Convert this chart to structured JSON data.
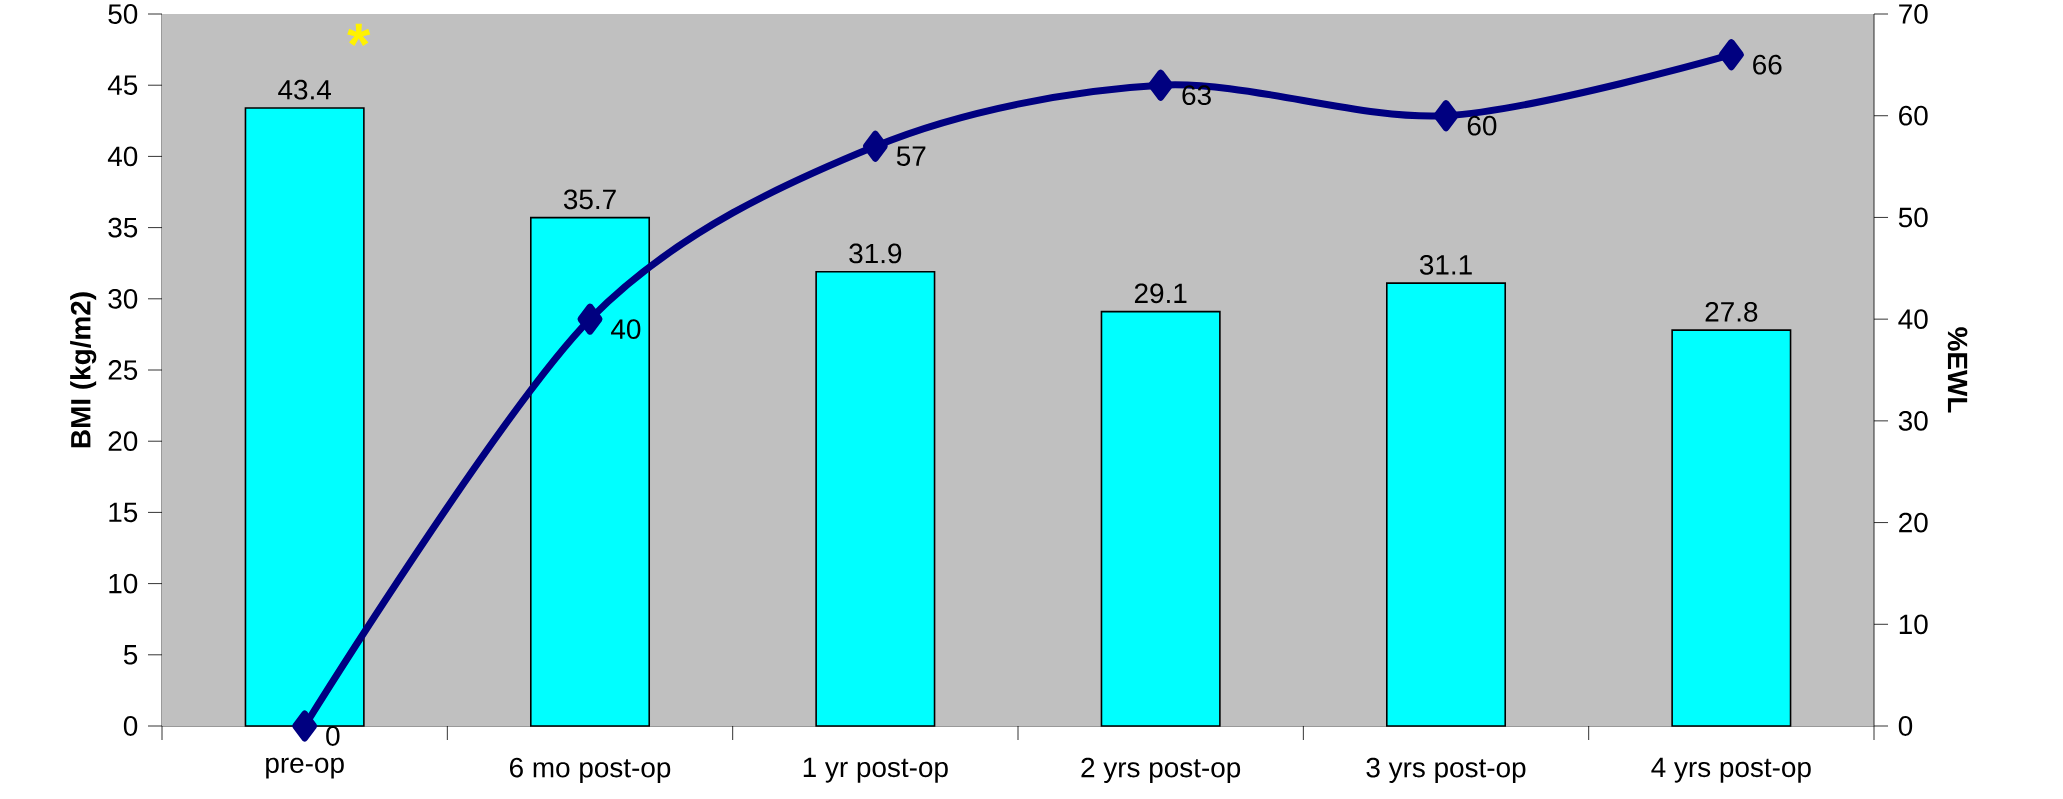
{
  "chart_data": {
    "type": "bar",
    "ylabel": "BMI (kg/m2)",
    "y2label": "%EWL",
    "categories": [
      "pre-op",
      "6 mo post-op",
      "1 yr post-op",
      "2 yrs post-op",
      "3 yrs post-op",
      "4 yrs post-op"
    ],
    "series": [
      {
        "color": "#00ffff",
        "values": [
          43.4,
          35.7,
          31.9,
          29.1,
          31.1,
          27.8
        ]
      },
      {
        "type": "line",
        "axis": "y2",
        "color": "#000080",
        "values": [
          0,
          40,
          57,
          63,
          60,
          66
        ]
      }
    ],
    "ylim": [
      0,
      50
    ],
    "yticks": [
      0,
      5,
      10,
      15,
      20,
      25,
      30,
      35,
      40,
      45,
      50
    ],
    "y2lim": [
      0,
      70
    ],
    "y2ticks": [
      0,
      10,
      20,
      30,
      40,
      50,
      60,
      70
    ],
    "data_labels": true,
    "marker": "diamond",
    "grid": false,
    "annotations": [
      "*"
    ]
  }
}
